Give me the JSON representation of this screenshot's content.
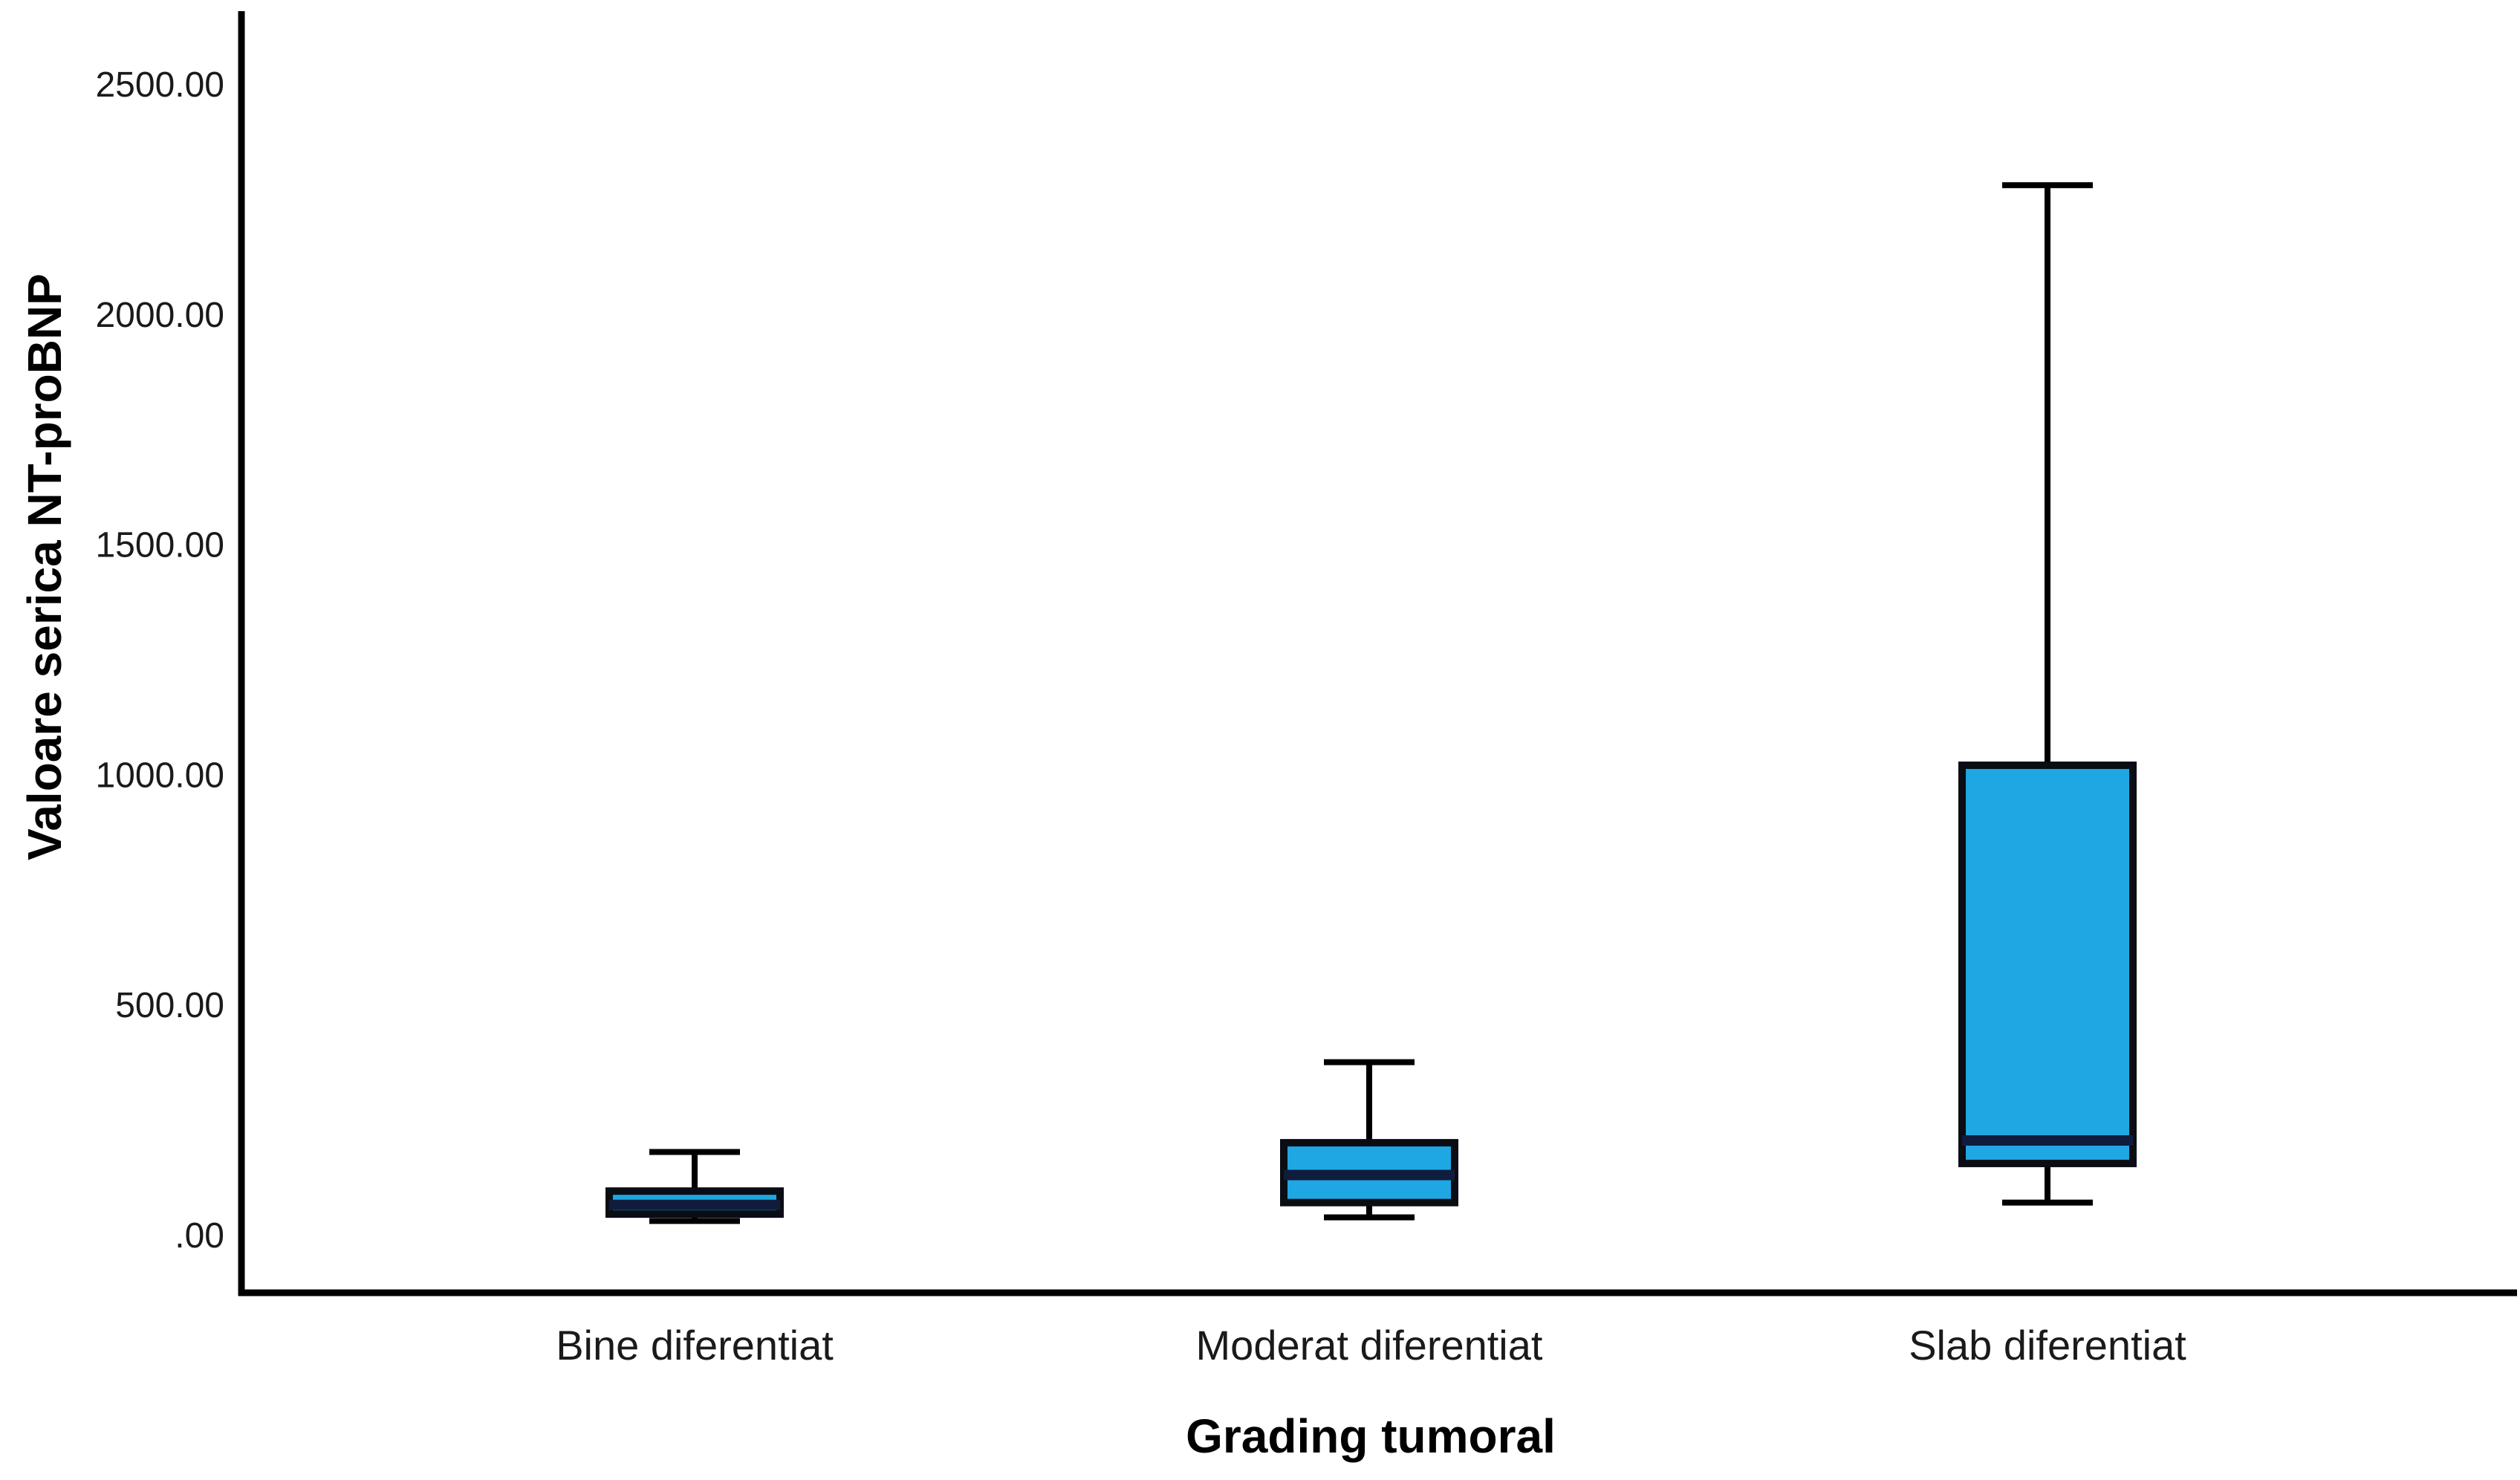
{
  "chart_data": {
    "type": "boxplot",
    "title": "",
    "xlabel": "Grading tumoral",
    "ylabel": "Valoare serica NT-proBNP",
    "ylim": [
      0,
      2650
    ],
    "grid": false,
    "legend": false,
    "categories": [
      "Bine diferentiat",
      "Moderat diferentiat",
      "Slab diferentiat"
    ],
    "y_ticks": [
      {
        "value": 0,
        "label": ".00"
      },
      {
        "value": 500,
        "label": "500.00"
      },
      {
        "value": 1000,
        "label": "1000.00"
      },
      {
        "value": 1500,
        "label": "1500.00"
      },
      {
        "value": 2000,
        "label": "2000.00"
      },
      {
        "value": 2500,
        "label": "2500.00"
      }
    ],
    "series": [
      {
        "name": "Bine diferentiat",
        "min": 30,
        "q1": 45,
        "median": 65,
        "q3": 95,
        "max": 180
      },
      {
        "name": "Moderat diferentiat",
        "min": 38,
        "q1": 70,
        "median": 130,
        "q3": 200,
        "max": 375
      },
      {
        "name": "Slab diferentiat",
        "min": 70,
        "q1": 155,
        "median": 205,
        "q3": 1020,
        "max": 2280
      }
    ],
    "colors": {
      "box_fill": "#1EA7E2",
      "box_stroke": "#0A0D14",
      "median": "#101C3C",
      "whisker": "#000000",
      "axis": "#000000",
      "text": "#1A1A1A"
    }
  }
}
